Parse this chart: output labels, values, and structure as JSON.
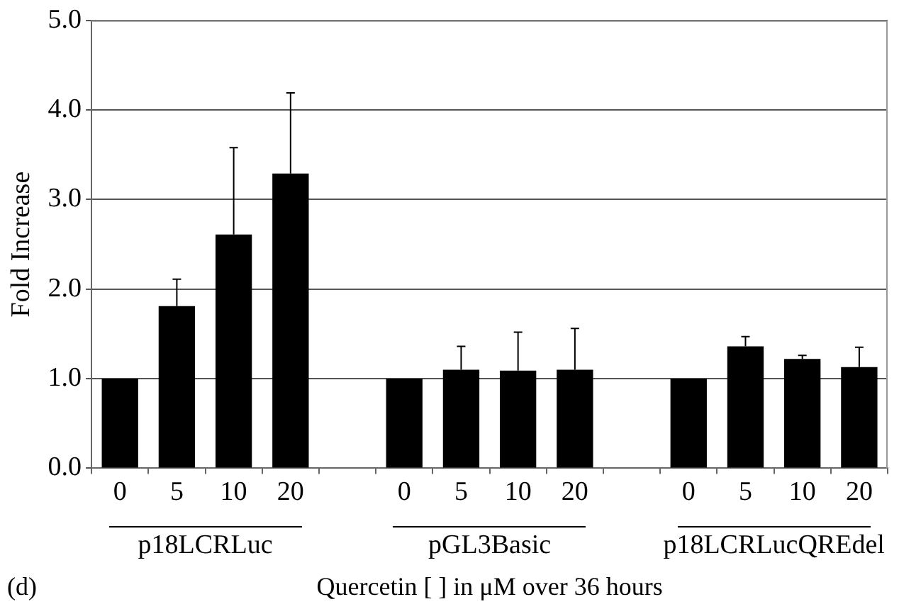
{
  "chart_data": {
    "type": "bar",
    "xlabel": "Quercetin [ ] in μM over 36 hours",
    "ylabel": "Fold Increase",
    "categories": [
      "0",
      "5",
      "10",
      "20",
      null,
      "0",
      "5",
      "10",
      "20",
      null,
      "0",
      "5",
      "10",
      "20"
    ],
    "values": [
      1.0,
      1.81,
      2.61,
      3.29,
      null,
      1.0,
      1.1,
      1.09,
      1.1,
      null,
      1.0,
      1.36,
      1.22,
      1.13
    ],
    "errors": [
      null,
      0.3,
      0.97,
      0.9,
      null,
      null,
      0.26,
      0.43,
      0.46,
      null,
      null,
      0.11,
      0.04,
      0.22
    ],
    "color": "#000000",
    "ylim": [
      0,
      5
    ],
    "yticks": [
      {
        "value": 0,
        "label": "0.0"
      },
      {
        "value": 1,
        "label": "1.0"
      },
      {
        "value": 2,
        "label": "2.0"
      },
      {
        "value": 3,
        "label": "3.0"
      },
      {
        "value": 4,
        "label": "4.0"
      },
      {
        "value": 5,
        "label": "5.0"
      }
    ],
    "grid": "y",
    "legend": false,
    "annotations": [
      "p18LCRLuc",
      "pGL3Basic",
      "p18LCRLucQREdel",
      "(d)"
    ]
  }
}
